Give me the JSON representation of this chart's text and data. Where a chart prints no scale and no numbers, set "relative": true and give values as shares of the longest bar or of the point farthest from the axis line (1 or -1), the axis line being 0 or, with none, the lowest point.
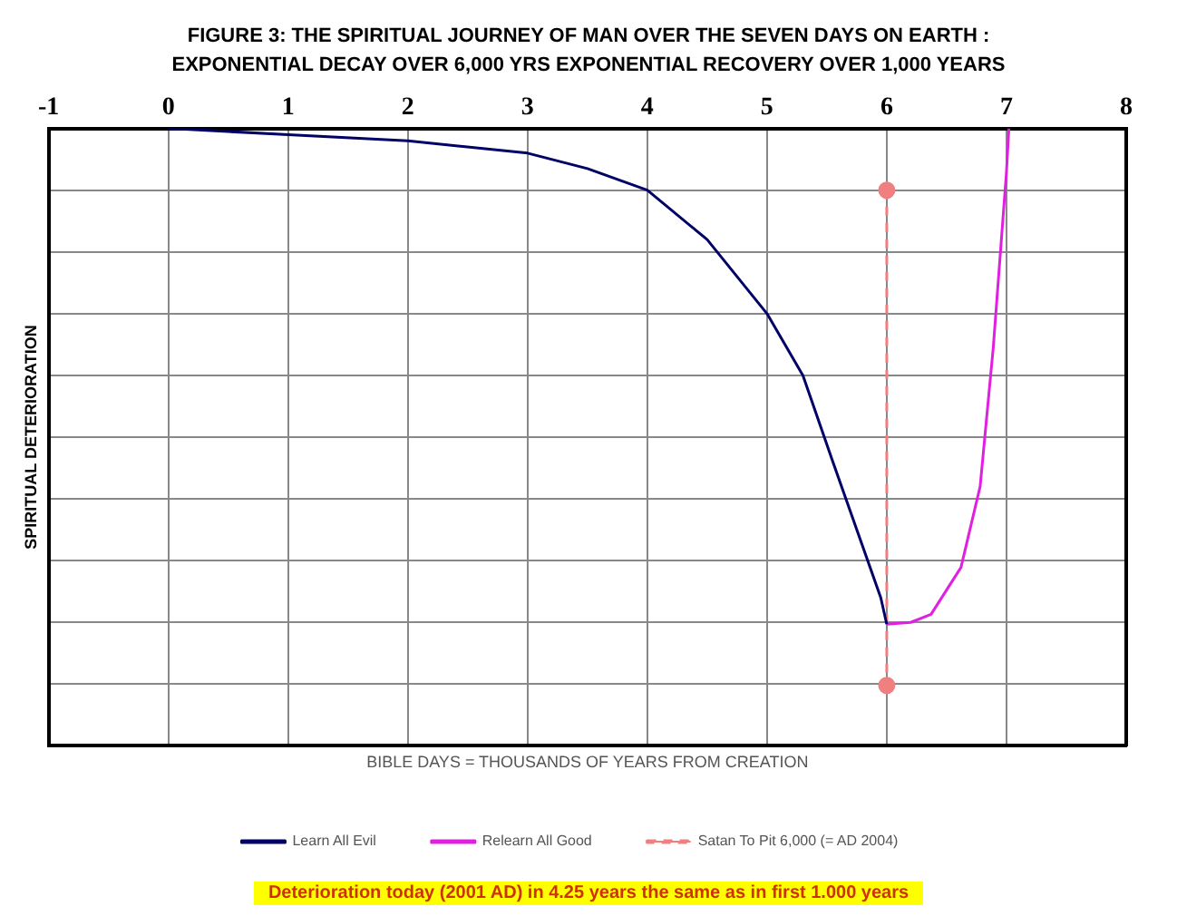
{
  "chart_data": {
    "type": "line",
    "title": "FIGURE 3: THE SPIRITUAL JOURNEY OF MAN OVER THE SEVEN DAYS ON EARTH : EXPONENTIAL DECAY OVER 6,000 YRS EXPONENTIAL RECOVERY OVER 1,000 YEARS",
    "xlabel": "BIBLE DAYS = THOUSANDS OF YEARS FROM CREATION",
    "ylabel": "SPIRITUAL DETERIORATION",
    "relative": true,
    "xlim": [
      -1,
      8
    ],
    "xticks": [
      -1,
      0,
      1,
      2,
      3,
      4,
      5,
      6,
      7,
      8
    ],
    "grid": true,
    "legend": "bottom",
    "series": [
      {
        "name": "Learn All Evil",
        "color": "#000066",
        "x": [
          0,
          1,
          2,
          3,
          3.5,
          4,
          4.5,
          5,
          5.3,
          5.55,
          5.95,
          6
        ],
        "values": [
          1.0,
          0.99,
          0.98,
          0.96,
          0.935,
          0.9,
          0.82,
          0.7,
          0.6,
          0.46,
          0.24,
          0.197
        ]
      },
      {
        "name": "Relearn All Good",
        "color": "#e020e0",
        "x": [
          6,
          6.2,
          6.37,
          6.62,
          6.78,
          6.89,
          7.0,
          7.02
        ],
        "values": [
          0.197,
          0.2,
          0.213,
          0.289,
          0.42,
          0.646,
          0.93,
          1.0
        ]
      },
      {
        "name": "Satan To Pit 6,000 (= AD 2004)",
        "color": "#f08080",
        "line_style": "dashed",
        "marker": "circle",
        "x": [
          6,
          6
        ],
        "values": [
          0.9,
          0.098
        ]
      }
    ],
    "annotations": [
      "Deterioration today (2001 AD) in 4.25 years the same as in first 1.000 years"
    ]
  }
}
